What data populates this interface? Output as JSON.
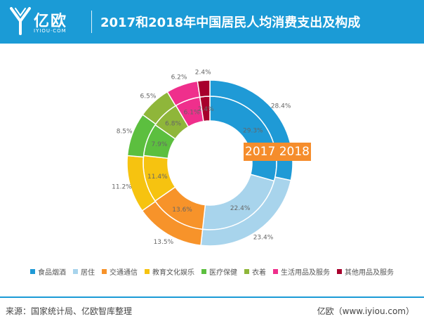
{
  "header": {
    "logo_text": "亿欧",
    "logo_sub": "IYIOU·COM",
    "title": "2017和2018年中国居民人均消费支出及构成",
    "bg_color": "#1b9bd6"
  },
  "year_label": "2017 2018",
  "footer": {
    "source": "来源：国家统计局、亿欧智库整理",
    "brand": "亿欧（www.iyiou.com）"
  },
  "chart_data": {
    "type": "pie",
    "subtype": "double-donut",
    "title": "2017和2018年中国居民人均消费支出及构成",
    "categories": [
      "食品烟酒",
      "居住",
      "交通通信",
      "教育文化娱乐",
      "医疗保健",
      "衣着",
      "生活用品及服务",
      "其他用品及服务"
    ],
    "colors": [
      "#1f9ad6",
      "#a8d4ec",
      "#f7932a",
      "#f6c310",
      "#5cbf3f",
      "#8fb63a",
      "#ef2f8c",
      "#a8002c"
    ],
    "series": [
      {
        "name": "2017",
        "ring": "inner",
        "values": [
          29.3,
          22.4,
          13.6,
          11.4,
          7.9,
          6.8,
          6.1,
          2.4
        ],
        "labels": [
          "29.3%",
          "22.4%",
          "13.6%",
          "11.4%",
          "7.9%",
          "6.8%",
          "6.1%",
          "2.4%"
        ]
      },
      {
        "name": "2018",
        "ring": "outer",
        "values": [
          28.4,
          23.4,
          13.5,
          11.2,
          8.5,
          6.5,
          6.2,
          2.4
        ],
        "labels": [
          "28.4%",
          "23.4%",
          "13.5%",
          "11.2%",
          "8.5%",
          "6.5%",
          "6.2%",
          "2.4%"
        ]
      }
    ],
    "legend_position": "bottom"
  }
}
